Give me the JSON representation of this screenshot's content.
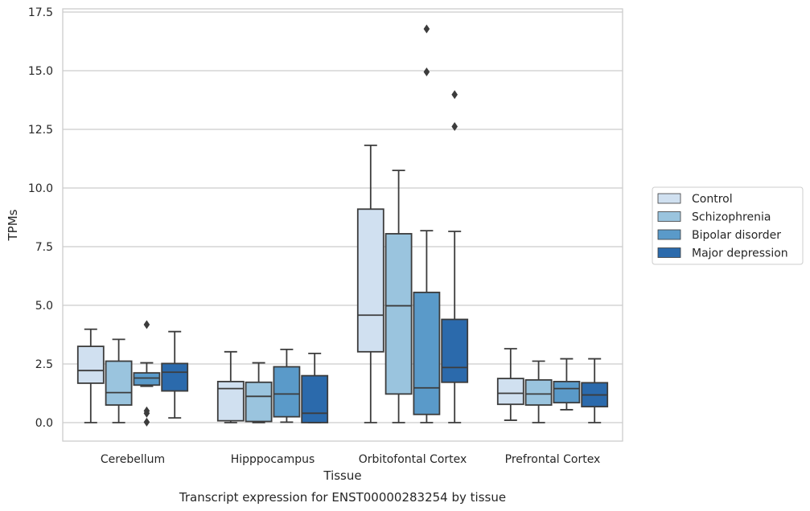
{
  "chart_data": {
    "type": "boxplot",
    "xlabel": "Tissue",
    "ylabel": "TPMs",
    "caption": "Transcript expression for ENST00000283254 by tissue",
    "ylim": [
      -0.8,
      17.6
    ],
    "yticks": [
      "0.0",
      "2.5",
      "5.0",
      "7.5",
      "10.0",
      "12.5",
      "15.0",
      "17.5"
    ],
    "grid": "horizontal",
    "legend_placement": "right-outside",
    "categories": [
      "Cerebellum",
      "Hipppocampus",
      "Orbitofontal Cortex",
      "Prefrontal Cortex"
    ],
    "series": [
      {
        "name": "Control",
        "color": "#d0e0f0",
        "boxes": [
          {
            "whislo": 0.0,
            "q1": 1.68,
            "med": 2.22,
            "q3": 3.25,
            "whishi": 3.98,
            "fliers": []
          },
          {
            "whislo": 0.0,
            "q1": 0.08,
            "med": 1.45,
            "q3": 1.75,
            "whishi": 3.02,
            "fliers": []
          },
          {
            "whislo": 0.0,
            "q1": 3.02,
            "med": 4.58,
            "q3": 9.1,
            "whishi": 11.82,
            "fliers": []
          },
          {
            "whislo": 0.1,
            "q1": 0.78,
            "med": 1.25,
            "q3": 1.88,
            "whishi": 3.15,
            "fliers": []
          }
        ]
      },
      {
        "name": "Schizophrenia",
        "color": "#9ac4de",
        "boxes": [
          {
            "whislo": 0.0,
            "q1": 0.75,
            "med": 1.28,
            "q3": 2.62,
            "whishi": 3.55,
            "fliers": []
          },
          {
            "whislo": 0.0,
            "q1": 0.05,
            "med": 1.12,
            "q3": 1.72,
            "whishi": 2.55,
            "fliers": []
          },
          {
            "whislo": 0.0,
            "q1": 1.22,
            "med": 4.98,
            "q3": 8.05,
            "whishi": 10.75,
            "fliers": []
          },
          {
            "whislo": 0.0,
            "q1": 0.75,
            "med": 1.22,
            "q3": 1.82,
            "whishi": 2.62,
            "fliers": []
          }
        ]
      },
      {
        "name": "Bipolar disorder",
        "color": "#5a9ac9",
        "boxes": [
          {
            "whislo": 1.55,
            "q1": 1.6,
            "med": 1.9,
            "q3": 2.12,
            "whishi": 2.55,
            "fliers": [
              4.18,
              0.5,
              0.4,
              0.02
            ]
          },
          {
            "whislo": 0.02,
            "q1": 0.25,
            "med": 1.22,
            "q3": 2.38,
            "whishi": 3.12,
            "fliers": []
          },
          {
            "whislo": 0.0,
            "q1": 0.35,
            "med": 1.48,
            "q3": 5.55,
            "whishi": 8.18,
            "fliers": [
              16.78,
              14.95
            ]
          },
          {
            "whislo": 0.55,
            "q1": 0.85,
            "med": 1.45,
            "q3": 1.75,
            "whishi": 2.72,
            "fliers": []
          }
        ]
      },
      {
        "name": "Major depression",
        "color": "#2b6aac",
        "boxes": [
          {
            "whislo": 0.2,
            "q1": 1.35,
            "med": 2.15,
            "q3": 2.52,
            "whishi": 3.88,
            "fliers": []
          },
          {
            "whislo": 0.0,
            "q1": 0.0,
            "med": 0.4,
            "q3": 2.0,
            "whishi": 2.95,
            "fliers": []
          },
          {
            "whislo": 0.0,
            "q1": 1.72,
            "med": 2.35,
            "q3": 4.4,
            "whishi": 8.15,
            "fliers": [
              13.98,
              12.62
            ]
          },
          {
            "whislo": 0.0,
            "q1": 0.68,
            "med": 1.18,
            "q3": 1.7,
            "whishi": 2.72,
            "fliers": []
          }
        ]
      }
    ]
  }
}
